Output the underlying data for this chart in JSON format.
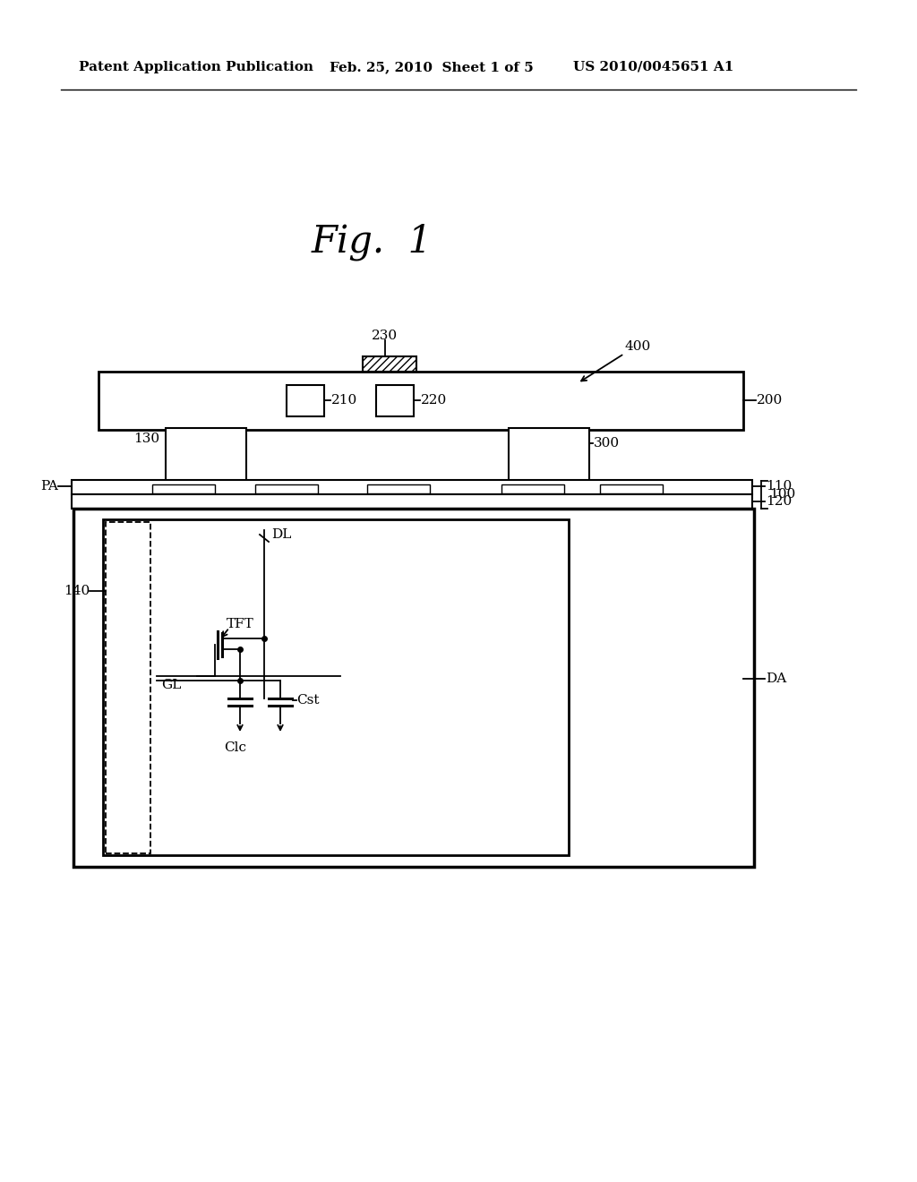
{
  "bg_color": "#ffffff",
  "line_color": "#000000",
  "header_left": "Patent Application Publication",
  "header_mid": "Feb. 25, 2010  Sheet 1 of 5",
  "header_right": "US 2010/0045651 A1",
  "fig_title": "Fig.  1",
  "label_400": "400",
  "label_230": "230",
  "label_200": "200",
  "label_210": "210",
  "label_220": "220",
  "label_130": "130",
  "label_300": "300",
  "label_PA": "PA",
  "label_110": "110",
  "label_120": "120",
  "label_100": "100",
  "label_140": "140",
  "label_DA": "DA",
  "label_DL": "DL",
  "label_TFT": "TFT",
  "label_Cst": "Cst",
  "label_Clc": "Clc",
  "label_GL": "GL"
}
